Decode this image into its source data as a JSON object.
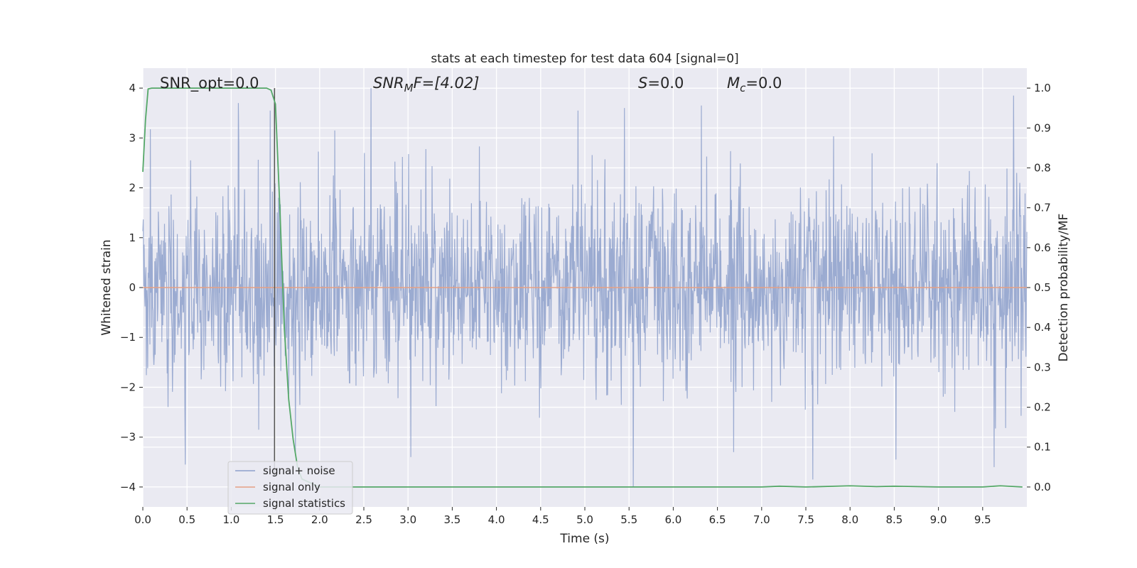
{
  "chart_data": {
    "type": "line",
    "title": "stats at each timestep for test data 604 [signal=0]",
    "xlabel": "Time (s)",
    "ylabel": "Whitened strain",
    "ylabel_right": "Detection probability/MF",
    "xlim": [
      0.0,
      10.0
    ],
    "ylim": [
      -4.4,
      4.4
    ],
    "ylim_right": [
      -0.05,
      1.05
    ],
    "x_ticks": [
      "0.0",
      "0.5",
      "1.0",
      "1.5",
      "2.0",
      "2.5",
      "3.0",
      "3.5",
      "4.0",
      "4.5",
      "5.0",
      "5.5",
      "6.0",
      "6.5",
      "7.0",
      "7.5",
      "8.0",
      "8.5",
      "9.0",
      "9.5"
    ],
    "x_tick_values": [
      0.0,
      0.5,
      1.0,
      1.5,
      2.0,
      2.5,
      3.0,
      3.5,
      4.0,
      4.5,
      5.0,
      5.5,
      6.0,
      6.5,
      7.0,
      7.5,
      8.0,
      8.5,
      9.0,
      9.5
    ],
    "y_ticks": [
      "4",
      "3",
      "2",
      "1",
      "0",
      "−1",
      "−2",
      "−3",
      "−4"
    ],
    "y_tick_values": [
      4,
      3,
      2,
      1,
      0,
      -1,
      -2,
      -3,
      -4
    ],
    "y_ticks_right": [
      "1.0",
      "0.9",
      "0.8",
      "0.7",
      "0.6",
      "0.5",
      "0.4",
      "0.3",
      "0.2",
      "0.1",
      "0.0"
    ],
    "y_tick_values_right": [
      1.0,
      0.9,
      0.8,
      0.7,
      0.6,
      0.5,
      0.4,
      0.3,
      0.2,
      0.1,
      0.0
    ],
    "grid": true,
    "legend_placement": "lower-left",
    "annotations": {
      "snr_opt": "SNR_opt=0.0",
      "snr_mf_main": "SNR",
      "snr_mf_sub": "M",
      "snr_mf_tail": "F=[4.02]",
      "s_main": "S",
      "s_tail": "=0.0",
      "mc_main": "M",
      "mc_sub": "c",
      "mc_tail": "=0.0"
    },
    "marker_line_x": 1.49,
    "noise": {
      "name": "signal+ noise",
      "color": "#8da0cb",
      "samples": 2000,
      "sigma": 1.0,
      "seed": 604,
      "peaks": [
        {
          "x": 0.48,
          "y": -3.55
        },
        {
          "x": 1.08,
          "y": 3.7
        },
        {
          "x": 1.44,
          "y": 3.55
        },
        {
          "x": 2.58,
          "y": 4.0
        },
        {
          "x": 5.55,
          "y": -4.0
        },
        {
          "x": 5.45,
          "y": 3.6
        },
        {
          "x": 6.32,
          "y": 3.65
        },
        {
          "x": 4.92,
          "y": 3.55
        },
        {
          "x": 7.58,
          "y": -3.85
        },
        {
          "x": 9.63,
          "y": -3.6
        },
        {
          "x": 9.85,
          "y": 3.85
        },
        {
          "x": 3.03,
          "y": -3.4
        },
        {
          "x": 8.52,
          "y": -3.45
        }
      ]
    },
    "series": [
      {
        "name": "signal only",
        "color": "#e5a083",
        "axis": "left",
        "x": [
          0.0,
          10.0
        ],
        "y": [
          0.0,
          0.0
        ]
      },
      {
        "name": "signal statistics",
        "color": "#55a868",
        "axis": "right",
        "x": [
          0.0,
          0.03,
          0.06,
          0.1,
          0.2,
          0.4,
          0.8,
          1.2,
          1.4,
          1.45,
          1.5,
          1.55,
          1.6,
          1.65,
          1.7,
          1.75,
          1.8,
          2.0,
          3.0,
          5.0,
          7.0,
          7.2,
          7.5,
          8.0,
          8.3,
          8.5,
          9.0,
          9.5,
          9.7,
          9.95
        ],
        "y": [
          0.79,
          0.92,
          0.998,
          1.0,
          1.0,
          1.0,
          1.0,
          1.0,
          1.0,
          0.995,
          0.96,
          0.7,
          0.4,
          0.22,
          0.12,
          0.05,
          0.02,
          0.0,
          0.0,
          0.0,
          0.0,
          0.002,
          0.0,
          0.003,
          0.001,
          0.002,
          0.0,
          0.0,
          0.003,
          0.0
        ]
      }
    ]
  }
}
